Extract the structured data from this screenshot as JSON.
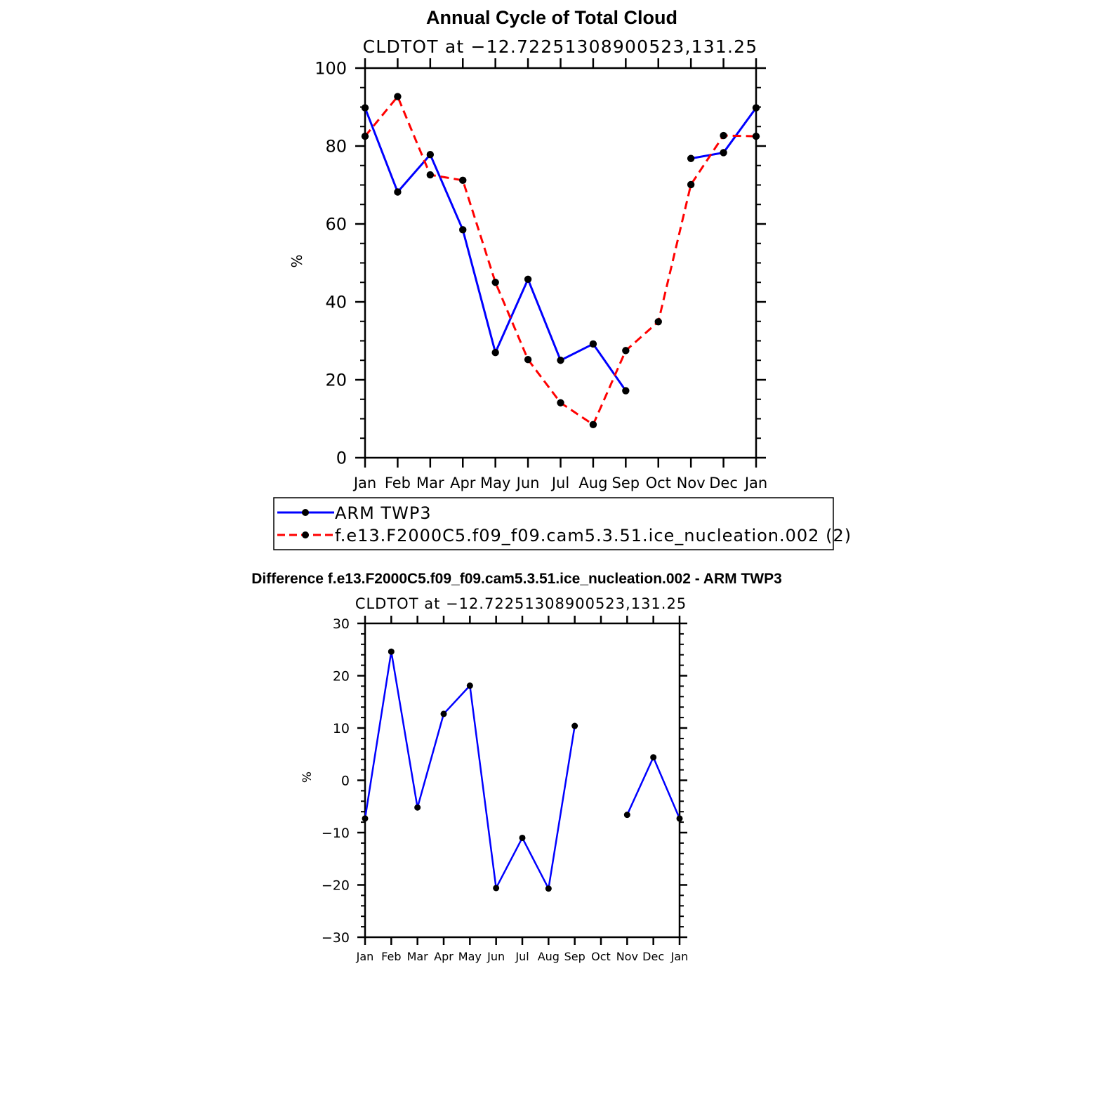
{
  "chart_data": [
    {
      "type": "line",
      "title": "Annual Cycle of Total Cloud",
      "subtitle": "CLDTOT at −12.72251308900523,131.25",
      "xlabel": "",
      "ylabel": "%",
      "categories": [
        "Jan",
        "Feb",
        "Mar",
        "Apr",
        "May",
        "Jun",
        "Jul",
        "Aug",
        "Sep",
        "Oct",
        "Nov",
        "Dec",
        "Jan"
      ],
      "ylim": [
        0,
        100
      ],
      "yticks": [
        0,
        20,
        40,
        60,
        80,
        100
      ],
      "ytick_labels": [
        "0",
        "20",
        "40",
        "60",
        "80",
        "100"
      ],
      "series": [
        {
          "name": "ARM TWP3",
          "color": "#0000ff",
          "dash": "solid",
          "values": [
            89.8,
            68.2,
            77.8,
            58.5,
            27.0,
            45.8,
            25.0,
            29.2,
            17.2,
            null,
            76.8,
            78.3,
            89.8
          ]
        },
        {
          "name": "f.e13.F2000C5.f09_f09.cam5.3.51.ice_nucleation.002 (2)",
          "color": "#ff0000",
          "dash": "dashed",
          "values": [
            82.5,
            92.7,
            72.6,
            71.2,
            45.0,
            25.2,
            14.1,
            8.5,
            27.5,
            34.9,
            70.1,
            82.7,
            82.5
          ]
        }
      ],
      "legend": "below"
    },
    {
      "type": "line",
      "title": "Difference f.e13.F2000C5.f09_f09.cam5.3.51.ice_nucleation.002 - ARM TWP3",
      "subtitle": "CLDTOT at −12.72251308900523,131.25",
      "xlabel": "",
      "ylabel": "%",
      "categories": [
        "Jan",
        "Feb",
        "Mar",
        "Apr",
        "May",
        "Jun",
        "Jul",
        "Aug",
        "Sep",
        "Oct",
        "Nov",
        "Dec",
        "Jan"
      ],
      "ylim": [
        -30,
        30
      ],
      "yticks": [
        -30,
        -20,
        -10,
        0,
        10,
        20,
        30
      ],
      "ytick_labels": [
        "−30",
        "−20",
        "−10",
        "0",
        "10",
        "20",
        "30"
      ],
      "series": [
        {
          "name": "Difference",
          "color": "#0000ff",
          "dash": "solid",
          "values": [
            -7.3,
            24.6,
            -5.2,
            12.7,
            18.1,
            -20.6,
            -11.0,
            -20.7,
            10.4,
            null,
            -6.6,
            4.4,
            -7.3
          ]
        }
      ]
    }
  ]
}
